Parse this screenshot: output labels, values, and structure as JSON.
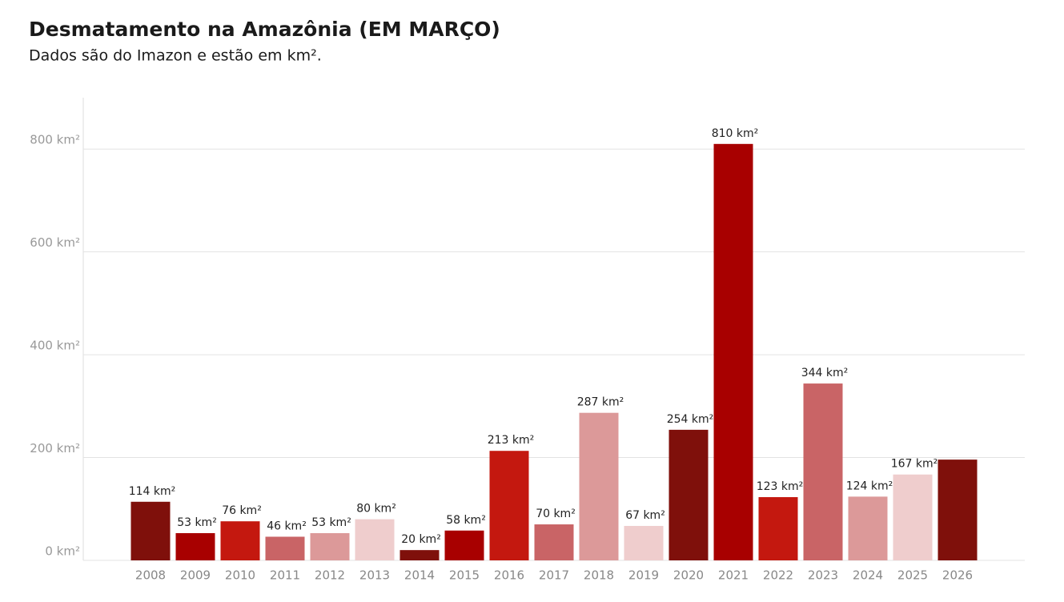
{
  "chart_data": {
    "type": "bar",
    "title": "Desmatamento na Amazônia (EM MARÇO)",
    "subtitle": "Dados são do Imazon e estão em km².",
    "categories": [
      "2008",
      "2009",
      "2010",
      "2011",
      "2012",
      "2013",
      "2014",
      "2015",
      "2016",
      "2017",
      "2018",
      "2019",
      "2020",
      "2021",
      "2022",
      "2023",
      "2024",
      "2025",
      "2026"
    ],
    "values": [
      114,
      53,
      76,
      46,
      53,
      80,
      20,
      58,
      213,
      70,
      287,
      67,
      254,
      810,
      123,
      344,
      124,
      167,
      196
    ],
    "value_labels": [
      "114 km²",
      "53 km²",
      "76 km²",
      "46 km²",
      "53 km²",
      "80 km²",
      "20 km²",
      "58 km²",
      "213 km²",
      "70 km²",
      "287 km²",
      "67 km²",
      "254 km²",
      "810 km²",
      "123 km²",
      "344 km²",
      "124 km²",
      "167 km²",
      null
    ],
    "colors": [
      "#7f100b",
      "#a80000",
      "#c4180f",
      "#c96466",
      "#dc9999",
      "#efcdcd",
      "#7f100b",
      "#a80000",
      "#c4180f",
      "#c96466",
      "#dc9999",
      "#efcdcd",
      "#7f100b",
      "#a80000",
      "#c4180f",
      "#c96466",
      "#dc9999",
      "#efcdcd",
      "#7f100b"
    ],
    "ylim": [
      0,
      900
    ],
    "yticks": [
      {
        "value": 0,
        "label": "0 km²"
      },
      {
        "value": 200,
        "label": "200 km²"
      },
      {
        "value": 400,
        "label": "400 km²"
      },
      {
        "value": 600,
        "label": "600 km²"
      },
      {
        "value": 800,
        "label": "800 km²"
      }
    ],
    "grid": true
  }
}
